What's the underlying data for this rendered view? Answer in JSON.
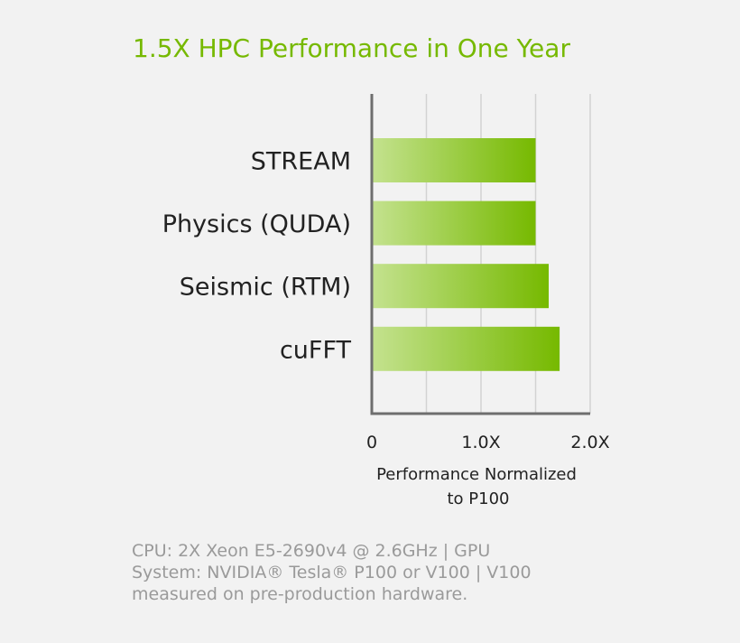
{
  "chart_data": {
    "type": "bar",
    "orientation": "horizontal",
    "title": "1.5X HPC Performance in One Year",
    "categories": [
      "STREAM",
      "Physics (QUDA)",
      "Seismic (RTM)",
      "cuFFT"
    ],
    "values": [
      1.5,
      1.5,
      1.62,
      1.72
    ],
    "xlim": [
      0,
      2.0
    ],
    "xticks": [
      {
        "value": 0,
        "label": "0"
      },
      {
        "value": 1.0,
        "label": "1.0X"
      },
      {
        "value": 2.0,
        "label": "2.0X"
      }
    ],
    "gridlines_at": [
      0.5,
      1.0,
      1.5,
      2.0
    ],
    "grid": true,
    "xlabel_lines": [
      "Performance Normalized",
      "to P100"
    ],
    "ylabel": "",
    "legend": "none",
    "colors": {
      "bar_start": "#c4e28f",
      "bar_end": "#76b900",
      "title": "#76b900",
      "axis": "#6e6e6e",
      "grid": "#d2d2d2"
    }
  },
  "footnote": {
    "lines": [
      "CPU: 2X Xeon E5-2690v4 @ 2.6GHz | GPU",
      "System: NVIDIA® Tesla® P100 or V100 | V100",
      "measured on pre-production hardware."
    ]
  }
}
